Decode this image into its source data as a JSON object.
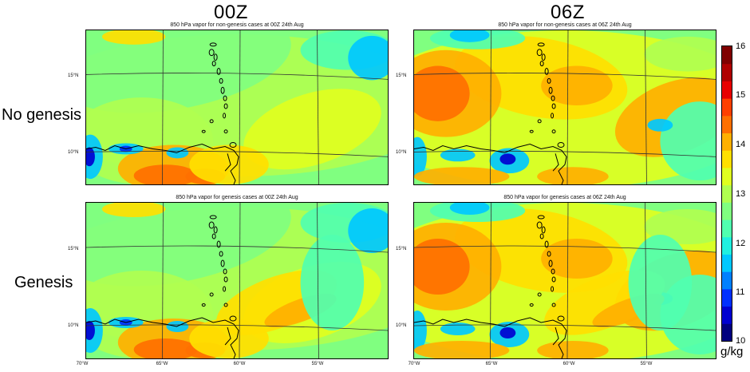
{
  "column_headers": [
    "00Z",
    "06Z"
  ],
  "row_headers": [
    "No genesis",
    "Genesis"
  ],
  "panels": [
    {
      "id": "ng00",
      "title": "850 hPa vapor for non-genesis cases at 00Z 24th Aug",
      "regime": "00z",
      "variant": "nongenesis"
    },
    {
      "id": "ng06",
      "title": "850 hPa vapor for non-genesis cases at 06Z 24th Aug",
      "regime": "06z",
      "variant": "nongenesis"
    },
    {
      "id": "g00",
      "title": "850 hPa vapor for genesis cases at 00Z 24th Aug",
      "regime": "00z",
      "variant": "genesis"
    },
    {
      "id": "g06",
      "title": "850 hPa vapor for genesis cases at 06Z 24th Aug",
      "regime": "06z",
      "variant": "genesis"
    }
  ],
  "lat_labels": [
    "15°N",
    "10°N"
  ],
  "lon_labels": [
    "70°W",
    "65°W",
    "60°W",
    "55°W"
  ],
  "colorbar": {
    "unit": "g/kg",
    "ticks": [
      10,
      11,
      12,
      13,
      14,
      15,
      16
    ],
    "colors": [
      "#00007f",
      "#0000d0",
      "#0030ff",
      "#0080ff",
      "#00c8ff",
      "#20f0e0",
      "#50ffb0",
      "#80ff80",
      "#b0ff50",
      "#e0ff20",
      "#ffe000",
      "#ffb000",
      "#ff7000",
      "#ff4000",
      "#e80000",
      "#b00000",
      "#800000"
    ]
  }
}
